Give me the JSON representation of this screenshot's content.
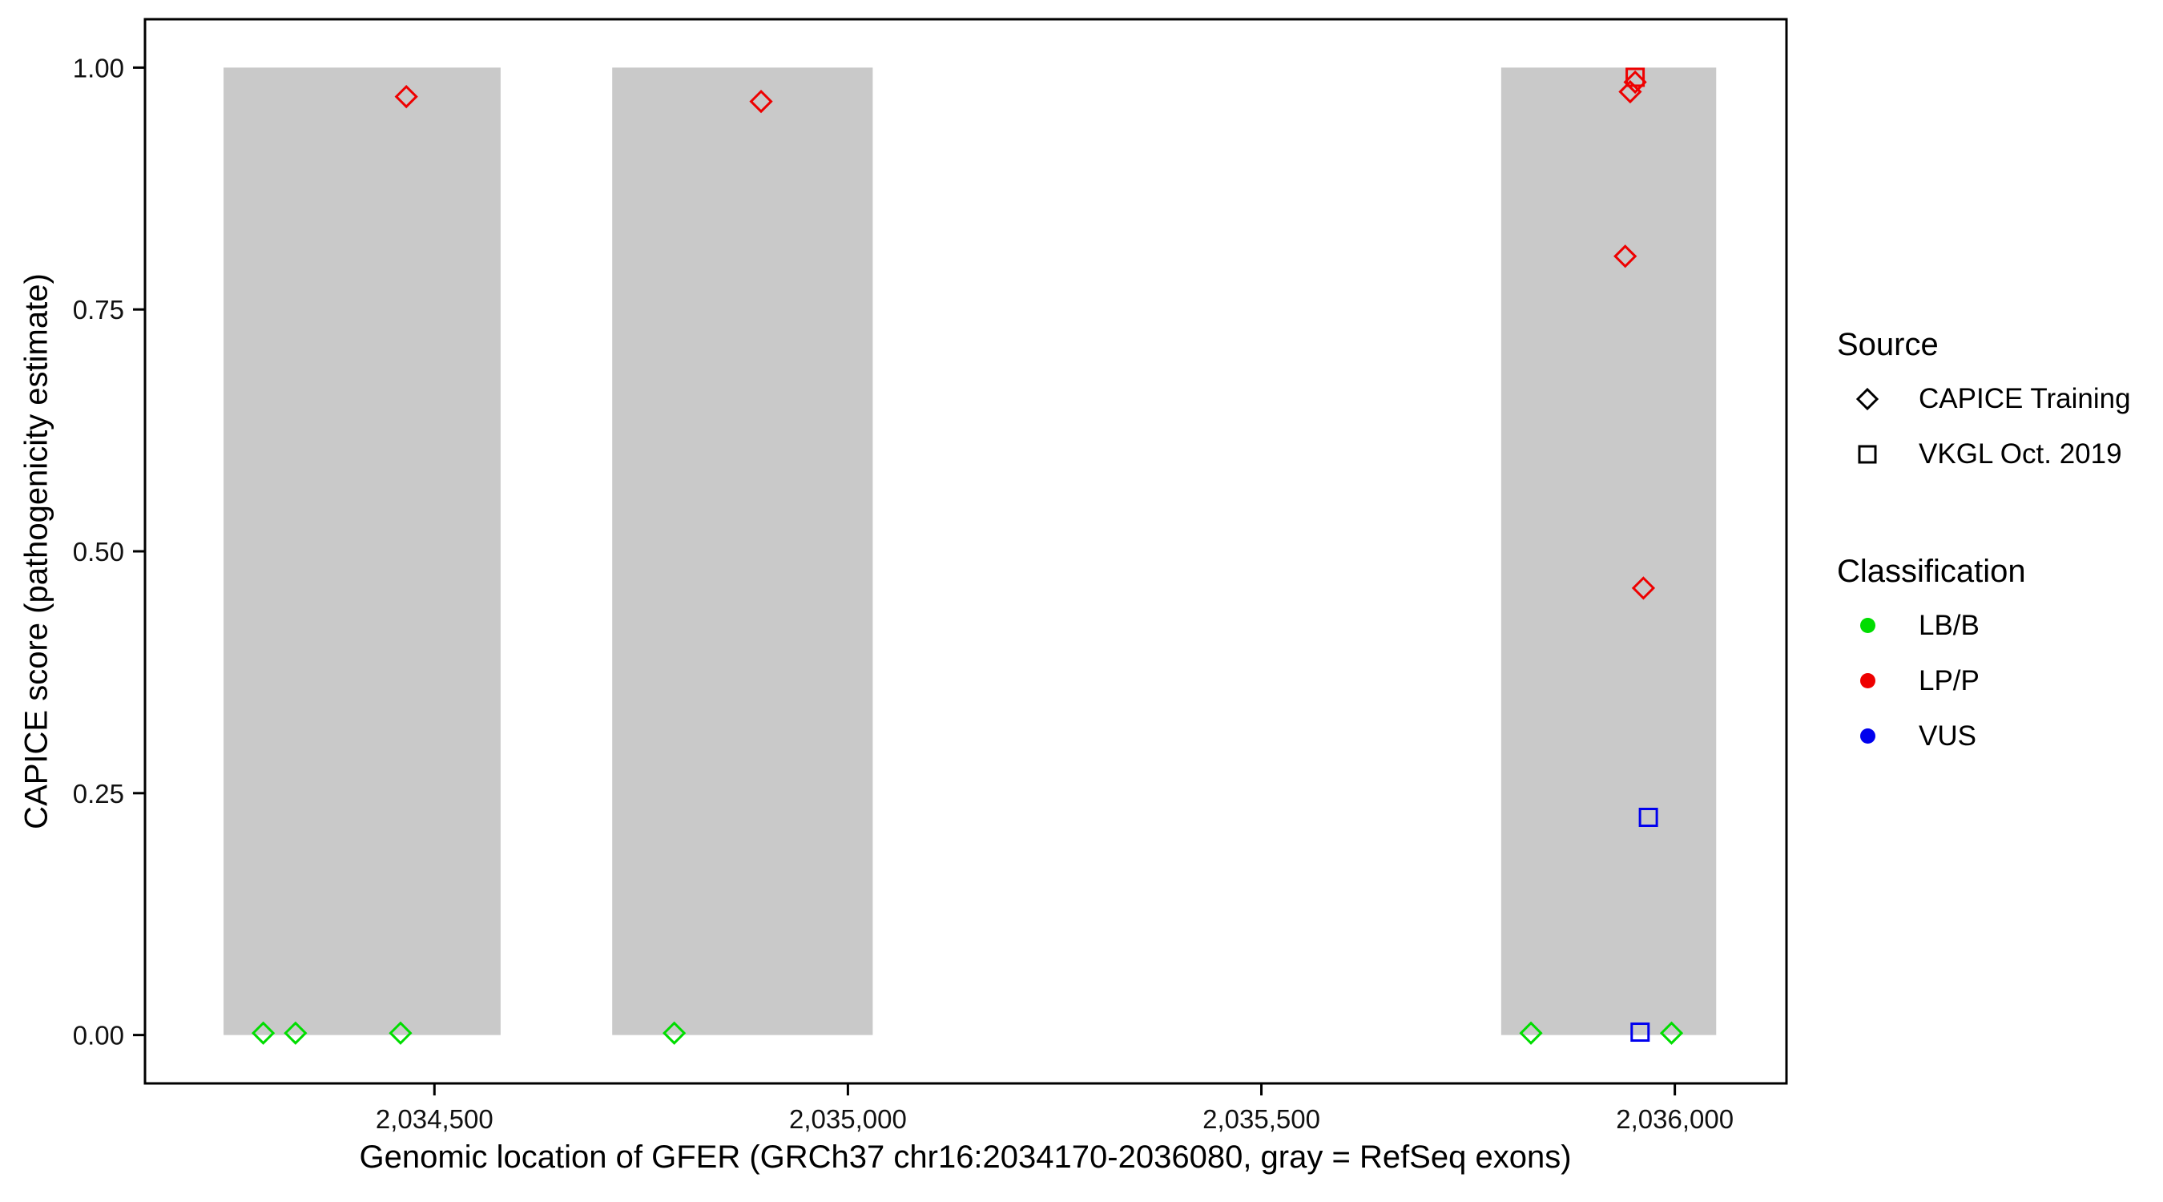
{
  "chart_data": {
    "type": "scatter",
    "title": "",
    "xlabel": "Genomic location of GFER (GRCh37 chr16:2034170-2036080, gray = RefSeq exons)",
    "ylabel": "CAPICE score (pathogenicity estimate)",
    "xlim": [
      2034150,
      2036135
    ],
    "ylim": [
      -0.05,
      1.05
    ],
    "grid": false,
    "x_ticks": [
      {
        "value": 2034500,
        "label": "2,034,500"
      },
      {
        "value": 2035000,
        "label": "2,035,000"
      },
      {
        "value": 2035500,
        "label": "2,035,500"
      },
      {
        "value": 2036000,
        "label": "2,036,000"
      }
    ],
    "y_ticks": [
      {
        "value": 0.0,
        "label": "0.00"
      },
      {
        "value": 0.25,
        "label": "0.25"
      },
      {
        "value": 0.5,
        "label": "0.50"
      },
      {
        "value": 0.75,
        "label": "0.75"
      },
      {
        "value": 1.0,
        "label": "1.00"
      }
    ],
    "exons": [
      {
        "start": 2034245,
        "end": 2034580
      },
      {
        "start": 2034715,
        "end": 2035030
      },
      {
        "start": 2035790,
        "end": 2036050
      }
    ],
    "exon_color": "#c9c9c9",
    "panel_border_color": "#000000",
    "colors": {
      "LB/B": "#00dd00",
      "LP/P": "#ee0000",
      "VUS": "#0000ee"
    },
    "series": [
      {
        "name": "CAPICE Training / LP/P",
        "source": "CAPICE Training",
        "shape": "diamond",
        "classification": "LP/P",
        "points": [
          [
            2034466,
            0.97
          ],
          [
            2034895,
            0.965
          ],
          [
            2035952,
            0.985
          ],
          [
            2035946,
            0.975
          ],
          [
            2035940,
            0.805
          ],
          [
            2035962,
            0.462
          ]
        ]
      },
      {
        "name": "CAPICE Training / LB/B",
        "source": "CAPICE Training",
        "shape": "diamond",
        "classification": "LB/B",
        "points": [
          [
            2034293,
            0.002
          ],
          [
            2034332,
            0.002
          ],
          [
            2034459,
            0.002
          ],
          [
            2034790,
            0.002
          ],
          [
            2035826,
            0.002
          ],
          [
            2035996,
            0.002
          ]
        ]
      },
      {
        "name": "VKGL Oct. 2019 / LP/P",
        "source": "VKGL Oct. 2019",
        "shape": "square",
        "classification": "LP/P",
        "points": [
          [
            2035952,
            0.99
          ]
        ]
      },
      {
        "name": "VKGL Oct. 2019 / VUS",
        "source": "VKGL Oct. 2019",
        "shape": "square",
        "classification": "VUS",
        "points": [
          [
            2035968,
            0.225
          ],
          [
            2035958,
            0.003
          ]
        ]
      }
    ]
  },
  "legend": {
    "source": {
      "title": "Source",
      "items": [
        {
          "label": "CAPICE Training",
          "shape": "diamond"
        },
        {
          "label": "VKGL Oct. 2019",
          "shape": "square"
        }
      ]
    },
    "classification": {
      "title": "Classification",
      "items": [
        {
          "label": "LB/B",
          "color": "#00dd00"
        },
        {
          "label": "LP/P",
          "color": "#ee0000"
        },
        {
          "label": "VUS",
          "color": "#0000ee"
        }
      ]
    }
  }
}
